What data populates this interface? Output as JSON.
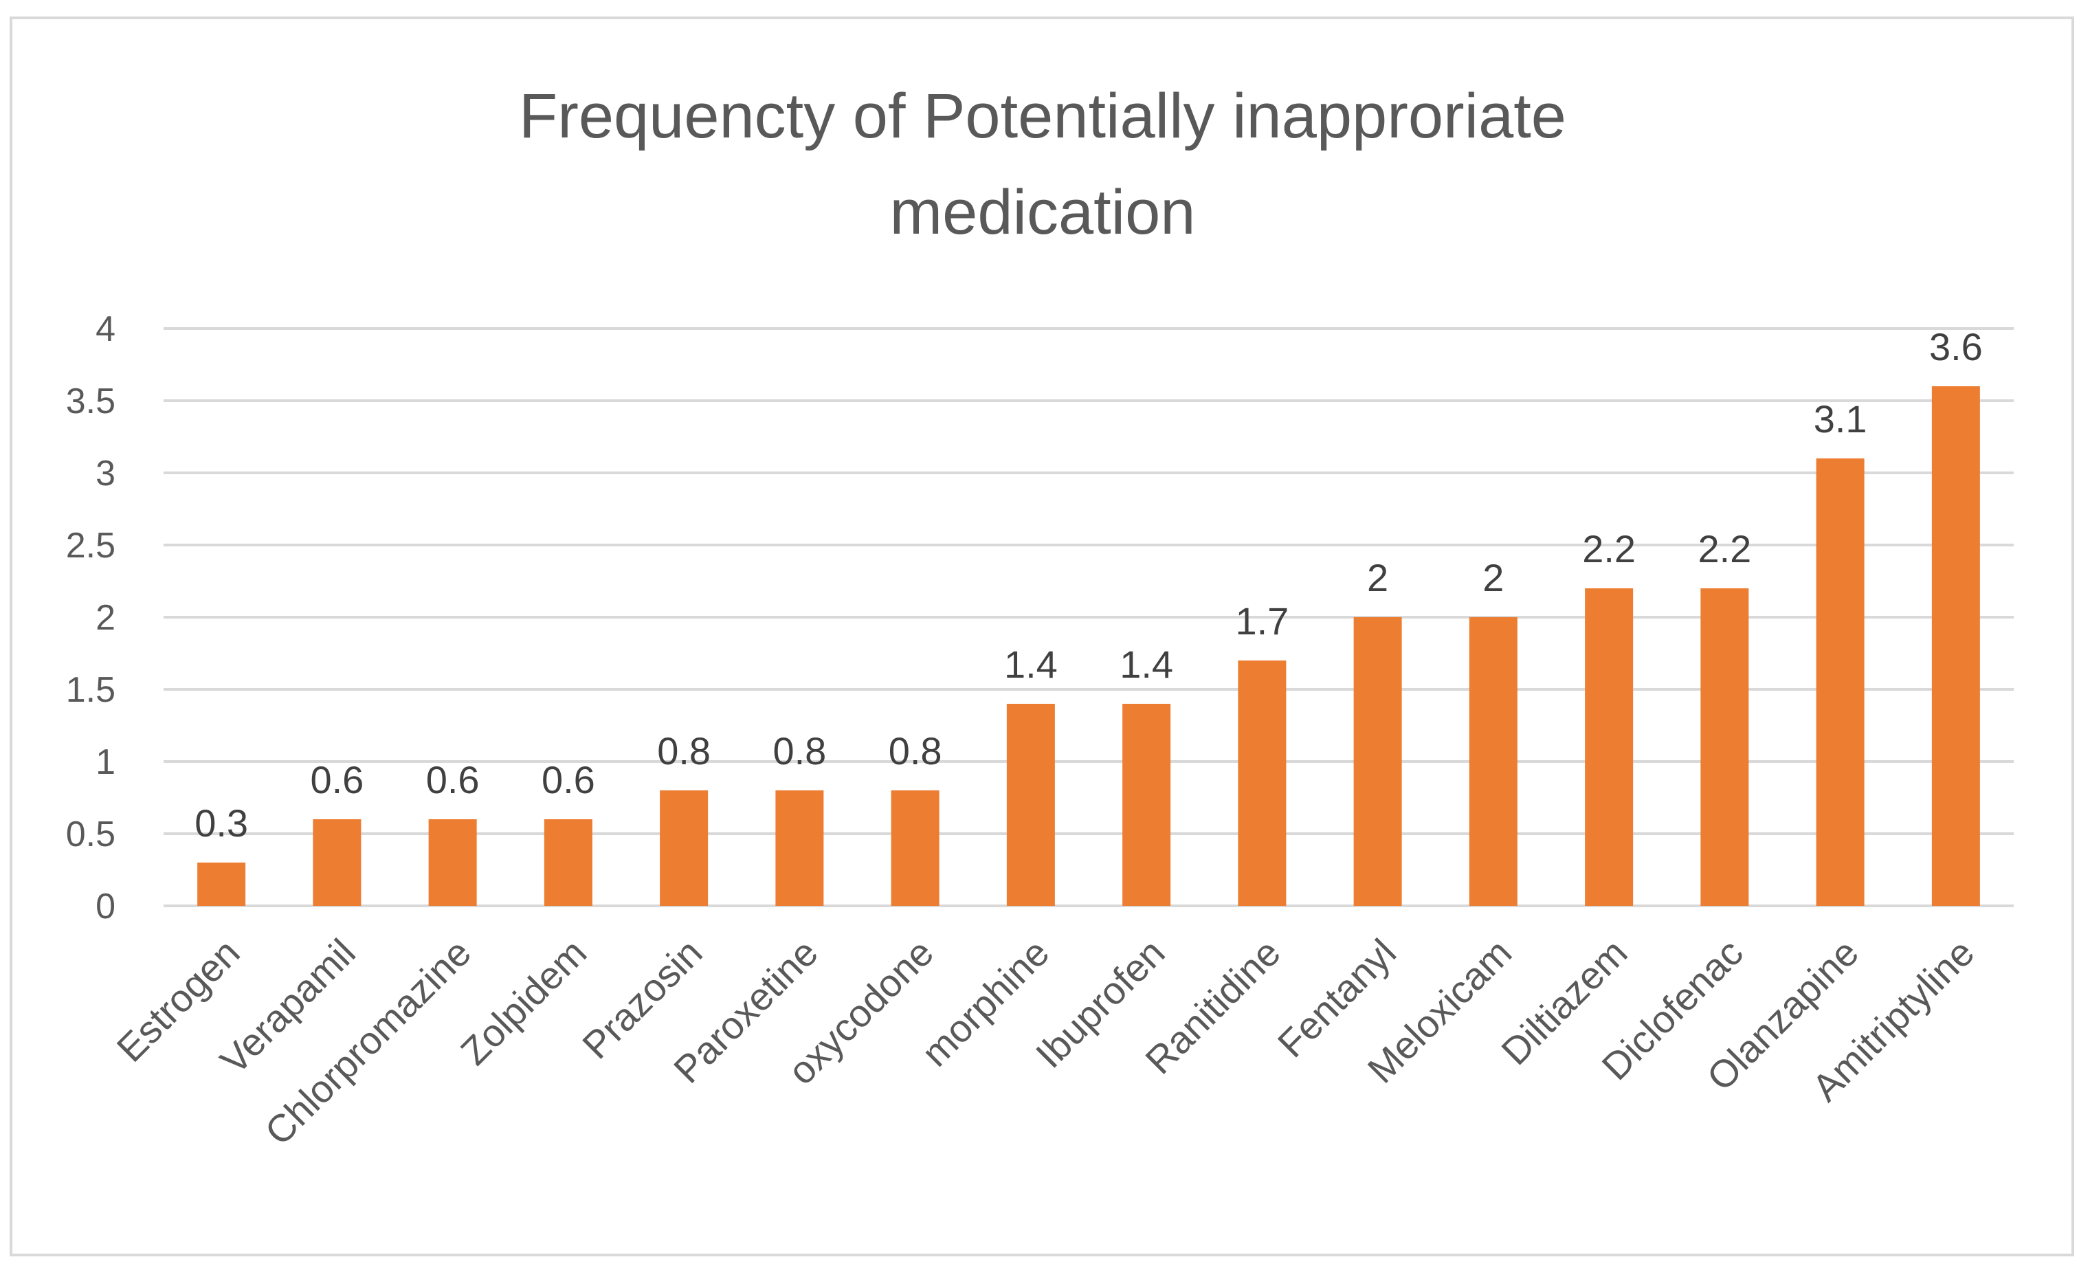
{
  "chart_data": {
    "type": "bar",
    "title_lines": [
      "Frequencty of Potentially inapproriate",
      "medication"
    ],
    "categories": [
      "Estrogen",
      "Verapamil",
      "Chlorpromazine",
      "Zolpidem",
      "Prazosin",
      "Paroxetine",
      "oxycodone",
      "morphine",
      "Ibuprofen",
      "Ranitidine",
      "Fentanyl",
      "Meloxicam",
      "Diltiazem",
      "Diclofenac",
      "Olanzapine",
      "Amitriptyline"
    ],
    "values": [
      0.3,
      0.6,
      0.6,
      0.6,
      0.8,
      0.8,
      0.8,
      1.4,
      1.4,
      1.7,
      2,
      2,
      2.2,
      2.2,
      3.1,
      3.6
    ],
    "data_labels": [
      "0.3",
      "0.6",
      "0.6",
      "0.6",
      "0.8",
      "0.8",
      "0.8",
      "1.4",
      "1.4",
      "1.7",
      "2",
      "2",
      "2.2",
      "2.2",
      "3.1",
      "3.6"
    ],
    "yticks": [
      "0",
      "0.5",
      "1",
      "1.5",
      "2",
      "2.5",
      "3",
      "3.5",
      "4"
    ],
    "ylim": [
      0,
      4
    ],
    "xlabel": "",
    "ylabel": "",
    "grid": true,
    "colors": {
      "bar": "#ed7d31",
      "grid": "#d9d9d9",
      "border": "#d9d9d9",
      "text": "#595959"
    }
  }
}
